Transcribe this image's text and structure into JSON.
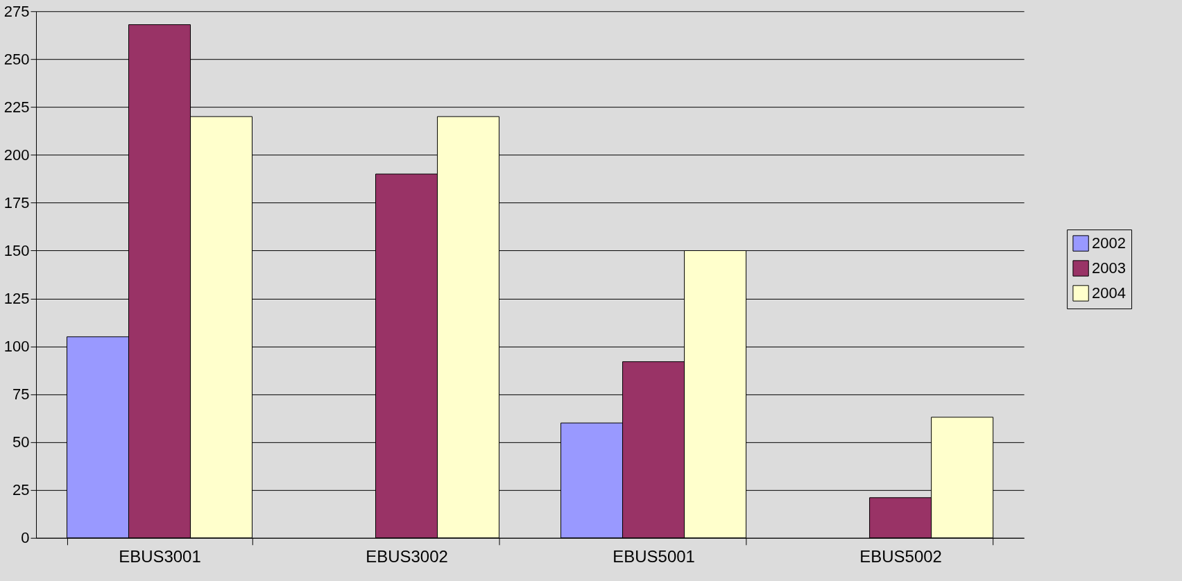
{
  "chart_data": {
    "type": "bar",
    "categories": [
      "EBUS3001",
      "EBUS3002",
      "EBUS5001",
      "EBUS5002"
    ],
    "series": [
      {
        "name": "2002",
        "color": "#9999ff",
        "values": [
          105,
          null,
          60,
          null
        ]
      },
      {
        "name": "2003",
        "color": "#993366",
        "values": [
          268,
          190,
          92,
          21
        ]
      },
      {
        "name": "2004",
        "color": "#ffffcc",
        "values": [
          220,
          220,
          150,
          63
        ]
      }
    ],
    "ylim": [
      0,
      275
    ],
    "yticks": [
      0,
      25,
      50,
      75,
      100,
      125,
      150,
      175,
      200,
      225,
      250,
      275
    ],
    "grid": "y",
    "legend": "right"
  }
}
